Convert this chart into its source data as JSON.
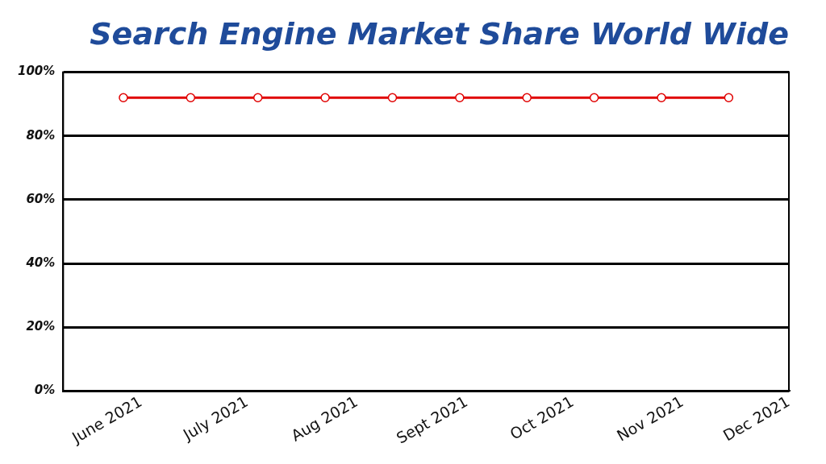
{
  "chart_data": {
    "type": "line",
    "title": "Search Engine Market Share World Wide",
    "x": [
      "2021-05-27",
      "2021-06-15",
      "2021-07-04",
      "2021-07-23",
      "2021-08-11",
      "2021-08-30",
      "2021-09-18",
      "2021-10-07",
      "2021-10-26",
      "2021-11-14"
    ],
    "series": [
      {
        "color": "#e00000",
        "values": [
          92,
          92,
          92,
          92,
          92,
          92,
          92,
          92,
          92,
          92
        ]
      }
    ],
    "xlim": [
      "2021-05-10",
      "2021-12-01"
    ],
    "xticks": [
      {
        "value": "2021-06-01",
        "label": "June 2021"
      },
      {
        "value": "2021-07-01",
        "label": "July 2021"
      },
      {
        "value": "2021-08-01",
        "label": "Aug 2021"
      },
      {
        "value": "2021-09-01",
        "label": "Sept 2021"
      },
      {
        "value": "2021-10-01",
        "label": "Oct 2021"
      },
      {
        "value": "2021-11-01",
        "label": "Nov 2021"
      },
      {
        "value": "2021-12-01",
        "label": "Dec 2021"
      }
    ],
    "ylim": [
      0,
      100
    ],
    "yticks": [
      {
        "value": 0,
        "label": "0%"
      },
      {
        "value": 20,
        "label": "20%"
      },
      {
        "value": 40,
        "label": "40%"
      },
      {
        "value": 60,
        "label": "60%"
      },
      {
        "value": 80,
        "label": "80%"
      },
      {
        "value": 100,
        "label": "100%"
      }
    ],
    "grid": "y",
    "legend": false,
    "marker": "circle",
    "line_style": "solid"
  }
}
